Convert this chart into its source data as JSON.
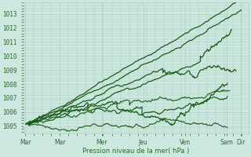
{
  "xlabel": "Pression niveau de la mer( hPa )",
  "ylim": [
    1004.5,
    1013.8
  ],
  "yticks": [
    1005,
    1006,
    1007,
    1008,
    1009,
    1010,
    1011,
    1012,
    1013
  ],
  "xtick_labels": [
    "Mar",
    "Mar",
    "Mer",
    "Jeu",
    "Ven",
    "Sam",
    "Dir"
  ],
  "xtick_positions": [
    0,
    0.83,
    1.83,
    2.83,
    3.83,
    4.83,
    5.17
  ],
  "xlim": [
    -0.05,
    5.35
  ],
  "bg_color": "#cce8e0",
  "grid_color": "#aaccbb",
  "line_color": "#1a5c1a",
  "font_color": "#2d6b2d"
}
